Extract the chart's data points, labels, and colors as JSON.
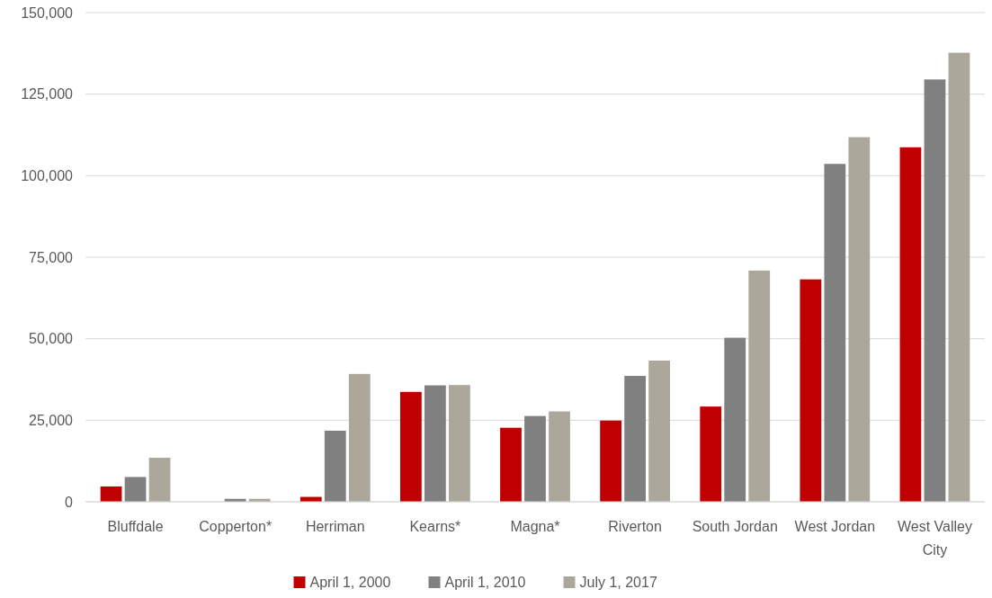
{
  "chart_data": {
    "type": "bar",
    "categories": [
      "Bluffdale",
      "Copperton*",
      "Herriman",
      "Kearns*",
      "Magna*",
      "Riverton",
      "South Jordan",
      "West Jordan",
      "West Valley City"
    ],
    "series": [
      {
        "name": "April 1, 2000",
        "color": "#c00000",
        "values": [
          4700,
          null,
          1500,
          33700,
          22700,
          24900,
          29200,
          68200,
          108700
        ]
      },
      {
        "name": "April 1, 2010",
        "color": "#808080",
        "values": [
          7600,
          900,
          21800,
          35700,
          26300,
          38600,
          50300,
          103600,
          129500
        ]
      },
      {
        "name": "July 1, 2017",
        "color": "#aba89b",
        "values": [
          13500,
          900,
          39200,
          35800,
          27700,
          43300,
          70900,
          111800,
          137700
        ]
      }
    ],
    "ylim": [
      0,
      150000
    ],
    "yticks": [
      {
        "value": 0,
        "label": "0"
      },
      {
        "value": 25000,
        "label": "25,000"
      },
      {
        "value": 50000,
        "label": "50,000"
      },
      {
        "value": 75000,
        "label": "75,000"
      },
      {
        "value": 100000,
        "label": "100,000"
      },
      {
        "value": 125000,
        "label": "125,000"
      },
      {
        "value": 150000,
        "label": "150,000"
      }
    ],
    "grid": "y",
    "legend": "bottom"
  }
}
